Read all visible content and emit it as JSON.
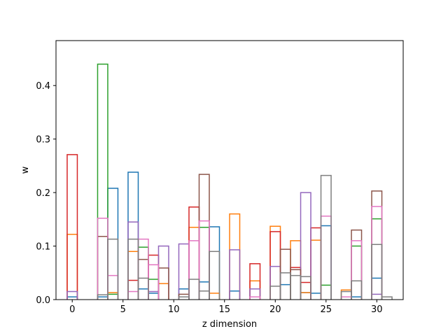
{
  "chart_data": {
    "type": "step-histogram",
    "title": "",
    "xlabel": "z dimension",
    "ylabel": "w",
    "xlim": [
      -1.6,
      32.6
    ],
    "ylim": [
      0,
      0.484
    ],
    "bin_width": 1,
    "xticks": [
      0,
      5,
      10,
      15,
      20,
      25,
      30
    ],
    "yticks": [
      0.0,
      0.1,
      0.2,
      0.3,
      0.4
    ],
    "ytick_labels": [
      "0.0",
      "0.1",
      "0.2",
      "0.3",
      "0.4"
    ],
    "grid": false,
    "legend": "none",
    "series": [
      {
        "color": "#1f77b4",
        "values": {
          "0": 0.005,
          "3": 0.005,
          "4": 0.208,
          "6": 0.238,
          "7": 0.02,
          "8": 0.012,
          "11": 0.02,
          "13": 0.033,
          "14": 0.136,
          "16": 0.016,
          "21": 0.028,
          "23": 0.013,
          "24": 0.012,
          "25": 0.138,
          "28": 0.005,
          "30": 0.04
        }
      },
      {
        "color": "#ff7f0e",
        "values": {
          "0": 0.122,
          "4": 0.013,
          "6": 0.09,
          "9": 0.03,
          "12": 0.135,
          "14": 0.012,
          "16": 0.16,
          "18": 0.035,
          "20": 0.137,
          "22": 0.11,
          "23": 0.013,
          "24": 0.111,
          "27": 0.018
        }
      },
      {
        "color": "#2ca02c",
        "values": {
          "3": 0.44,
          "4": 0.01,
          "7": 0.098,
          "8": 0.038,
          "13": 0.135,
          "25": 0.027,
          "28": 0.1,
          "30": 0.151
        }
      },
      {
        "color": "#d62728",
        "values": {
          "0": 0.271,
          "6": 0.036,
          "8": 0.083,
          "12": 0.173,
          "18": 0.067,
          "20": 0.127,
          "22": 0.06,
          "23": 0.032,
          "24": 0.134
        }
      },
      {
        "color": "#9467bd",
        "values": {
          "0": 0.015,
          "6": 0.145,
          "8": 0.015,
          "9": 0.1,
          "11": 0.104,
          "16": 0.093,
          "18": 0.02,
          "20": 0.062,
          "23": 0.2,
          "30": 0.01
        }
      },
      {
        "color": "#8c564b",
        "values": {
          "3": 0.118,
          "7": 0.075,
          "9": 0.059,
          "11": 0.01,
          "13": 0.234,
          "21": 0.094,
          "22": 0.056,
          "28": 0.13,
          "30": 0.203
        }
      },
      {
        "color": "#e377c2",
        "values": {
          "3": 0.152,
          "4": 0.045,
          "6": 0.015,
          "7": 0.113,
          "8": 0.065,
          "12": 0.11,
          "13": 0.147,
          "18": 0.005,
          "25": 0.156,
          "27": 0.005,
          "28": 0.11,
          "30": 0.174
        }
      },
      {
        "color": "#7f7f7f",
        "values": {
          "3": 0.009,
          "4": 0.113,
          "6": 0.113,
          "7": 0.04,
          "11": 0.005,
          "12": 0.038,
          "13": 0.016,
          "14": 0.09,
          "20": 0.025,
          "21": 0.05,
          "22": 0.045,
          "23": 0.043,
          "25": 0.232,
          "27": 0.015,
          "28": 0.035,
          "30": 0.103,
          "31": 0.005
        }
      }
    ]
  }
}
